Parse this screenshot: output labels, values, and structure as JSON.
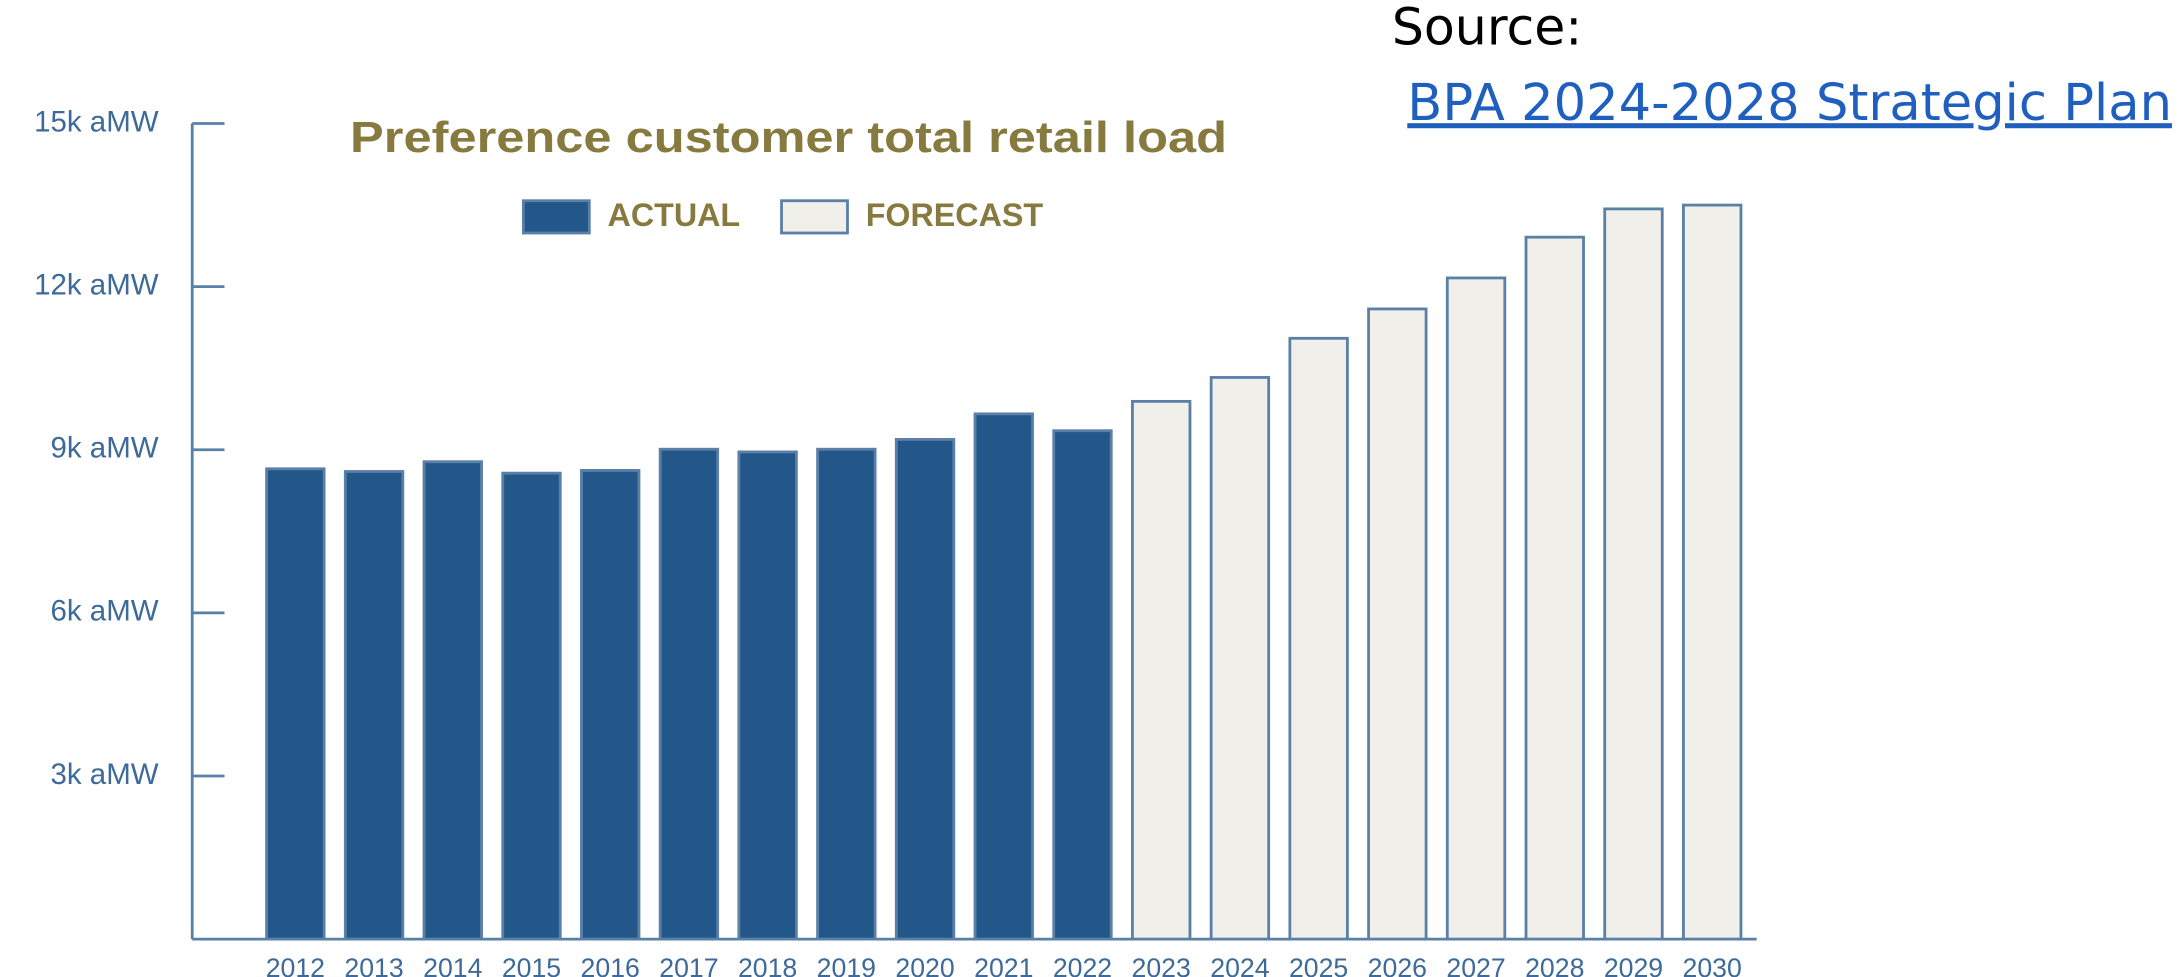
{
  "source": {
    "label": "Source:",
    "link": "BPA 2024-2028 Strategic Plan"
  },
  "chart_data": {
    "type": "bar",
    "title": "Preference customer total retail load",
    "categories": [
      "2012",
      "2013",
      "2014",
      "2015",
      "2016",
      "2017",
      "2018",
      "2019",
      "2020",
      "2021",
      "2022",
      "2023",
      "2024",
      "2025",
      "2026",
      "2027",
      "2028",
      "2029",
      "2030"
    ],
    "series": [
      {
        "name": "ACTUAL",
        "color": "#23578a",
        "values": [
          8650,
          8600,
          8780,
          8570,
          8620,
          9010,
          8960,
          9010,
          9190,
          9660,
          9350,
          null,
          null,
          null,
          null,
          null,
          null,
          null,
          null
        ]
      },
      {
        "name": "FORECAST",
        "color": "#f0efea",
        "values": [
          null,
          null,
          null,
          null,
          null,
          null,
          null,
          null,
          null,
          null,
          null,
          9890,
          10330,
          11050,
          11590,
          12160,
          12910,
          13430,
          13500
        ]
      }
    ],
    "ylim": [
      0,
      15000
    ],
    "yticks": [
      {
        "value": 3000,
        "label": "3k aMW"
      },
      {
        "value": 6000,
        "label": "6k aMW"
      },
      {
        "value": 9000,
        "label": "9k aMW"
      },
      {
        "value": 12000,
        "label": "12k aMW"
      },
      {
        "value": 15000,
        "label": "15k aMW"
      }
    ],
    "grid": false,
    "legend": "top"
  }
}
